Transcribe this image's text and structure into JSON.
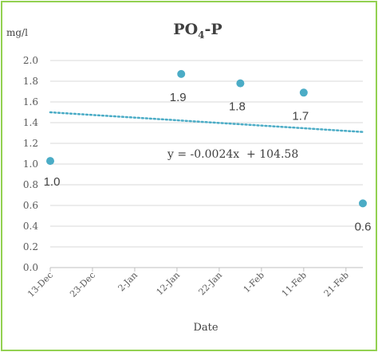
{
  "chart_data": {
    "type": "scatter",
    "title_main": "PO",
    "title_sub": "4",
    "title_tail": "-P",
    "ylabel": "mg/l",
    "xlabel": "Date",
    "ylim": [
      0,
      2.0
    ],
    "yticks": [
      "0.0",
      "0.2",
      "0.4",
      "0.6",
      "0.8",
      "1.0",
      "1.2",
      "1.4",
      "1.6",
      "1.8",
      "2.0"
    ],
    "xlim": [
      "2023-12-13",
      "2024-02-25"
    ],
    "xticks": [
      {
        "date": "2023-12-13",
        "label": "13-Dec"
      },
      {
        "date": "2023-12-23",
        "label": "23-Dec"
      },
      {
        "date": "2024-01-02",
        "label": "2-Jan"
      },
      {
        "date": "2024-01-12",
        "label": "12-Jan"
      },
      {
        "date": "2024-01-22",
        "label": "22-Jan"
      },
      {
        "date": "2024-02-01",
        "label": "1-Feb"
      },
      {
        "date": "2024-02-11",
        "label": "11-Feb"
      },
      {
        "date": "2024-02-21",
        "label": "21-Feb"
      }
    ],
    "points": [
      {
        "date": "2023-12-13",
        "y": 1.03,
        "label": "1.0"
      },
      {
        "date": "2024-01-13",
        "y": 1.87,
        "label": "1.9"
      },
      {
        "date": "2024-01-27",
        "y": 1.78,
        "label": "1.8"
      },
      {
        "date": "2024-02-11",
        "y": 1.69,
        "label": "1.7"
      },
      {
        "date": "2024-02-25",
        "y": 0.62,
        "label": "0.6"
      }
    ],
    "trendline": {
      "style": "dotted",
      "equation": "y = -0.0024x  + 104.58",
      "start": {
        "date": "2023-12-13",
        "y": 1.5
      },
      "end": {
        "date": "2024-02-25",
        "y": 1.31
      }
    },
    "colors": {
      "marker": "#4bacc6",
      "trend": "#4bacc6",
      "grid": "#d9d9d9",
      "border": "#92d050"
    },
    "grid": true,
    "legend": "none"
  }
}
